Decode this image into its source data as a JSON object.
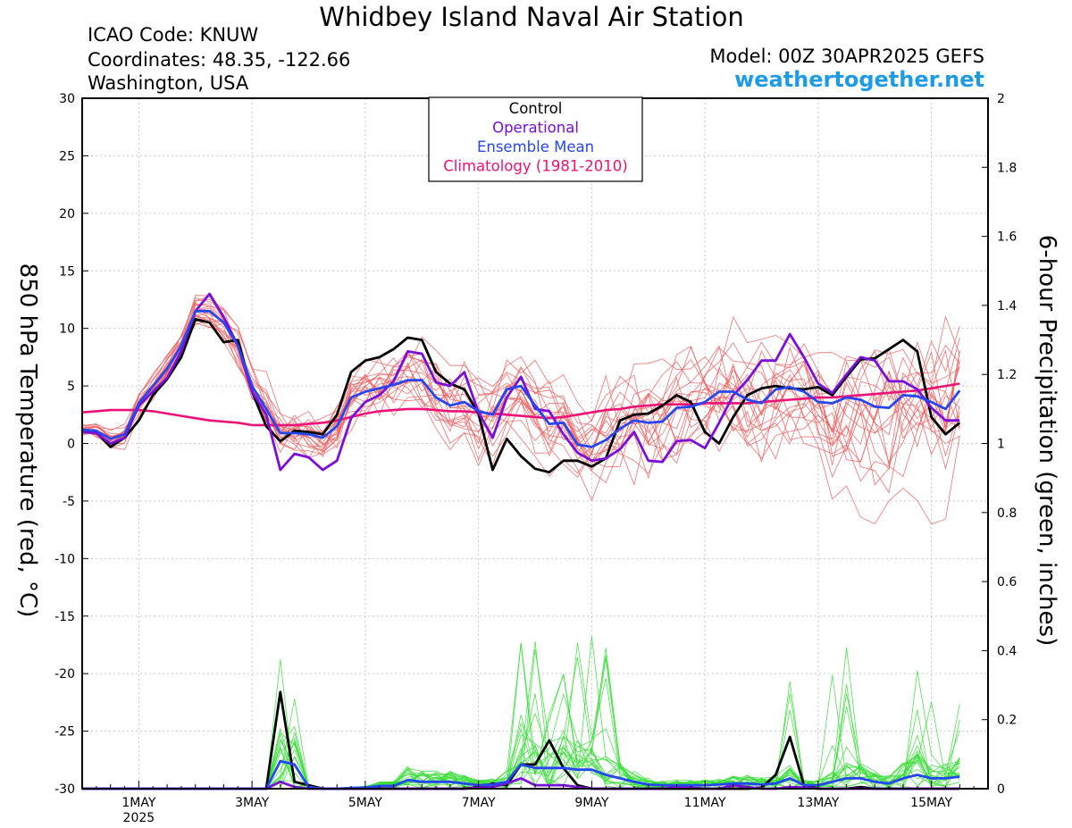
{
  "header": {
    "title": "Whidbey Island Naval Air Station",
    "icao": "ICAO Code: KNUW",
    "coords": "Coordinates: 48.35, -122.66",
    "region": "Washington, USA",
    "model": "Model: 00Z 30APR2025 GEFS",
    "site": "weathertogether.net"
  },
  "colors": {
    "members_temp": "#f05a5a",
    "members_precip": "#33dd33",
    "control": "#000000",
    "operational": "#7a0fd9",
    "ensemble_mean": "#2547f2",
    "climatology": "#ee1177",
    "site": "#1e9be6"
  },
  "chart_data": {
    "type": "line",
    "ylabel": "850 hPa Temperature (red, °C)",
    "y2label": "6-hour Precipitation (green, inches)",
    "ylim": [
      -30,
      30
    ],
    "y2lim": [
      0,
      2
    ],
    "yticks": [
      -30,
      -25,
      -20,
      -15,
      -10,
      -5,
      0,
      5,
      10,
      15,
      20,
      25,
      30
    ],
    "y2ticks": [
      "0",
      "0.2",
      "0.4",
      "0.6",
      "0.8",
      "1",
      "1.2",
      "1.4",
      "1.6",
      "1.8",
      "2"
    ],
    "x_index_range": [
      0,
      64
    ],
    "x_step_hours": 6,
    "x_start": "30APR2025 00Z",
    "xtick_labels": [
      {
        "i": 4,
        "label": "1MAY",
        "sub": "2025"
      },
      {
        "i": 12,
        "label": "3MAY"
      },
      {
        "i": 20,
        "label": "5MAY"
      },
      {
        "i": 28,
        "label": "7MAY"
      },
      {
        "i": 36,
        "label": "9MAY"
      },
      {
        "i": 44,
        "label": "11MAY"
      },
      {
        "i": 52,
        "label": "13MAY"
      },
      {
        "i": 60,
        "label": "15MAY"
      }
    ],
    "grid": true,
    "legend": {
      "position": "top-center",
      "entries": [
        {
          "label": "Control",
          "color": "#000000"
        },
        {
          "label": "Operational",
          "color": "#7a0fd9"
        },
        {
          "label": "Ensemble Mean",
          "color": "#2547f2"
        },
        {
          "label": "Climatology (1981-2010)",
          "color": "#ee1177"
        }
      ]
    },
    "series": [
      {
        "name": "Control",
        "axis": "temp",
        "values": [
          1.2,
          1.0,
          -0.3,
          0.5,
          2.0,
          4.2,
          5.6,
          7.5,
          10.8,
          10.5,
          8.8,
          9.0,
          4.5,
          1.5,
          0.2,
          1.1,
          1.0,
          0.8,
          2.5,
          6.2,
          7.2,
          7.5,
          8.2,
          9.2,
          9.0,
          6.2,
          5.2,
          4.7,
          2.6,
          -2.3,
          0.4,
          -1.1,
          -2.2,
          -2.5,
          -1.5,
          -1.5,
          -2.0,
          -1.3,
          2.0,
          2.5,
          2.6,
          3.3,
          4.2,
          3.6,
          1.0,
          0.0,
          2.3,
          4.2,
          4.8,
          5.0,
          4.8,
          4.7,
          4.9,
          4.2,
          5.8,
          7.3,
          7.4,
          8.2,
          9.0,
          8.0,
          2.3,
          0.8,
          1.8
        ]
      },
      {
        "name": "Operational",
        "axis": "temp",
        "values": [
          1.0,
          0.9,
          0.0,
          0.5,
          3.3,
          4.5,
          5.7,
          8.0,
          11.5,
          13.0,
          11.0,
          8.5,
          4.5,
          2.5,
          -2.3,
          -0.9,
          -1.2,
          -2.3,
          -1.5,
          2.2,
          3.6,
          4.2,
          5.4,
          8.0,
          7.8,
          5.3,
          5.0,
          6.2,
          2.7,
          0.5,
          4.0,
          5.8,
          3.0,
          2.8,
          0.8,
          -0.8,
          -1.5,
          -1.3,
          -0.5,
          1.0,
          -1.5,
          -1.6,
          0.2,
          0.3,
          -0.4,
          1.8,
          4.2,
          5.5,
          7.2,
          7.2,
          9.5,
          7.5,
          5.2,
          4.4,
          6.0,
          7.5,
          7.2,
          5.4,
          5.4,
          4.7,
          3.1,
          2.0,
          2.0
        ]
      },
      {
        "name": "Ensemble Mean",
        "axis": "temp",
        "values": [
          1.2,
          1.1,
          0.4,
          0.8,
          3.5,
          5.0,
          6.5,
          8.5,
          11.5,
          11.5,
          10.5,
          8.5,
          5.0,
          3.0,
          0.9,
          0.9,
          0.8,
          0.5,
          1.5,
          4.0,
          4.5,
          4.8,
          5.1,
          5.5,
          5.5,
          4.0,
          3.3,
          3.6,
          2.8,
          2.5,
          4.7,
          5.0,
          3.3,
          1.7,
          1.8,
          -0.1,
          -0.3,
          0.3,
          1.3,
          2.0,
          1.8,
          1.9,
          3.1,
          3.2,
          3.6,
          4.5,
          4.5,
          3.8,
          3.5,
          4.7,
          4.9,
          4.5,
          3.6,
          3.5,
          4.0,
          3.8,
          3.2,
          3.1,
          4.2,
          4.1,
          3.6,
          3.0,
          4.6
        ]
      },
      {
        "name": "Climatology (1981-2010)",
        "axis": "temp",
        "values": [
          2.7,
          2.8,
          2.9,
          2.9,
          2.9,
          2.8,
          2.6,
          2.4,
          2.2,
          2.0,
          1.9,
          1.8,
          1.6,
          1.6,
          1.6,
          1.6,
          1.7,
          1.8,
          2.0,
          2.3,
          2.6,
          2.8,
          2.9,
          3.0,
          3.0,
          2.9,
          2.8,
          2.8,
          2.7,
          2.6,
          2.5,
          2.4,
          2.3,
          2.2,
          2.3,
          2.5,
          2.7,
          2.9,
          3.0,
          3.2,
          3.3,
          3.4,
          3.4,
          3.4,
          3.5,
          3.5,
          3.5,
          3.5,
          3.6,
          3.7,
          3.8,
          3.9,
          4.0,
          4.0,
          4.1,
          4.2,
          4.3,
          4.4,
          4.5,
          4.6,
          4.8,
          5.0,
          5.2
        ]
      },
      {
        "name": "Control",
        "axis": "precip",
        "values": [
          0,
          0,
          0,
          0,
          0,
          0,
          0,
          0,
          0,
          0,
          0,
          0,
          0,
          0,
          0.28,
          0.02,
          0.01,
          0,
          0,
          0,
          0,
          0,
          0,
          0,
          0,
          0,
          0,
          0,
          0.005,
          0.015,
          0.01,
          0.07,
          0.07,
          0.14,
          0.06,
          0.01,
          0,
          0,
          0,
          0,
          0,
          0,
          0,
          0,
          0,
          0,
          0,
          0,
          0.003,
          0.04,
          0.15,
          0.01,
          0,
          0,
          0,
          0.005,
          0,
          0,
          0,
          0,
          0,
          0,
          0
        ]
      },
      {
        "name": "Operational",
        "axis": "precip",
        "values": [
          0,
          0,
          0,
          0,
          0,
          0,
          0,
          0,
          0,
          0,
          0,
          0,
          0,
          0,
          0.02,
          0.005,
          0,
          0,
          0,
          0,
          0,
          0,
          0,
          0,
          0,
          0,
          0,
          0,
          0.002,
          0.005,
          0.015,
          0.03,
          0.01,
          0.01,
          0.01,
          0.005,
          0,
          0,
          0,
          0,
          0,
          0,
          0.005,
          0.003,
          0,
          0,
          0.01,
          0.005,
          0,
          0,
          0.005,
          0.003,
          0,
          0,
          0,
          0,
          0,
          0,
          0,
          0,
          0,
          0,
          0
        ]
      },
      {
        "name": "Ensemble Mean",
        "axis": "precip",
        "values": [
          0,
          0,
          0,
          0,
          0,
          0,
          0,
          0,
          0,
          0,
          0,
          0,
          0,
          0,
          0.08,
          0.07,
          0.005,
          0,
          0,
          0.002,
          0.003,
          0.008,
          0.008,
          0.025,
          0.02,
          0.02,
          0.02,
          0.015,
          0.01,
          0.012,
          0.02,
          0.07,
          0.06,
          0.06,
          0.06,
          0.055,
          0.055,
          0.04,
          0.03,
          0.02,
          0.012,
          0.01,
          0.01,
          0.01,
          0.01,
          0.012,
          0.015,
          0.015,
          0.012,
          0.015,
          0.03,
          0.01,
          0.01,
          0.02,
          0.03,
          0.03,
          0.02,
          0.015,
          0.03,
          0.04,
          0.03,
          0.03,
          0.035
        ]
      }
    ]
  }
}
